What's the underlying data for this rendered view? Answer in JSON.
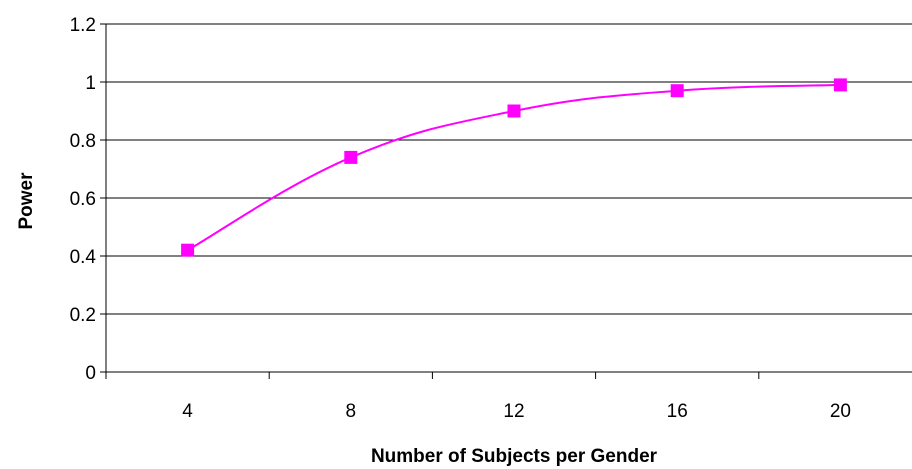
{
  "chart_data": {
    "type": "line",
    "title": "",
    "xlabel": "Number of Subjects per Gender",
    "ylabel": "Power",
    "categories": [
      "4",
      "8",
      "12",
      "16",
      "20"
    ],
    "series": [
      {
        "values": [
          0.42,
          0.74,
          0.9,
          0.97,
          0.99
        ],
        "color": "#ff00ff",
        "marker": "square"
      }
    ],
    "ylim": [
      0,
      1.2
    ],
    "y_ticks": [
      0,
      0.2,
      0.4,
      0.6,
      0.8,
      1,
      1.2
    ],
    "y_tick_labels": [
      "0",
      "0.2",
      "0.4",
      "0.6",
      "0.8",
      "1",
      "1.2"
    ],
    "grid": "horizontal",
    "legend": "none",
    "colors": {
      "line": "#ff00ff",
      "marker": "#ff00ff",
      "gridline": "#000000",
      "axis": "#000000"
    }
  }
}
